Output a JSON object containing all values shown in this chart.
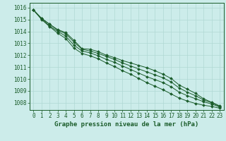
{
  "title": "Graphe pression niveau de la mer (hPa)",
  "background_color": "#ccecea",
  "grid_color": "#b0d8d4",
  "line_color": "#1a5c2a",
  "xlim": [
    -0.5,
    23.5
  ],
  "ylim": [
    1007.4,
    1016.4
  ],
  "yticks": [
    1008,
    1009,
    1010,
    1011,
    1012,
    1013,
    1014,
    1015,
    1016
  ],
  "xticks": [
    0,
    1,
    2,
    3,
    4,
    5,
    6,
    7,
    8,
    9,
    10,
    11,
    12,
    13,
    14,
    15,
    16,
    17,
    18,
    19,
    20,
    21,
    22,
    23
  ],
  "series": [
    [
      1015.8,
      1015.1,
      1014.6,
      1014.15,
      1013.9,
      1013.25,
      1012.55,
      1012.5,
      1012.3,
      1012.0,
      1011.8,
      1011.55,
      1011.35,
      1011.15,
      1010.95,
      1010.7,
      1010.4,
      1010.05,
      1009.5,
      1009.15,
      1008.8,
      1008.35,
      1008.05,
      1007.75
    ],
    [
      1015.8,
      1015.1,
      1014.6,
      1014.1,
      1013.8,
      1013.1,
      1012.5,
      1012.35,
      1012.15,
      1011.9,
      1011.65,
      1011.35,
      1011.1,
      1010.85,
      1010.6,
      1010.35,
      1010.1,
      1009.75,
      1009.25,
      1008.9,
      1008.6,
      1008.25,
      1008.0,
      1007.7
    ],
    [
      1015.8,
      1015.05,
      1014.45,
      1014.0,
      1013.6,
      1012.85,
      1012.35,
      1012.2,
      1011.95,
      1011.65,
      1011.4,
      1011.1,
      1010.8,
      1010.5,
      1010.2,
      1009.95,
      1009.7,
      1009.35,
      1008.9,
      1008.6,
      1008.35,
      1008.1,
      1007.9,
      1007.65
    ],
    [
      1015.8,
      1015.0,
      1014.4,
      1013.85,
      1013.4,
      1012.6,
      1012.15,
      1011.95,
      1011.7,
      1011.35,
      1011.05,
      1010.7,
      1010.4,
      1010.05,
      1009.7,
      1009.4,
      1009.1,
      1008.75,
      1008.4,
      1008.15,
      1007.95,
      1007.8,
      1007.7,
      1007.55
    ]
  ],
  "marker": "D",
  "marker_size": 2.0,
  "line_width": 0.7,
  "tick_fontsize": 5.5,
  "label_color": "#1a5c2a",
  "axis_color": "#1a5c2a",
  "xlabel_fontsize": 6.5,
  "grid_major_color": "#c0dbd8",
  "grid_minor_color": "#d8edea"
}
